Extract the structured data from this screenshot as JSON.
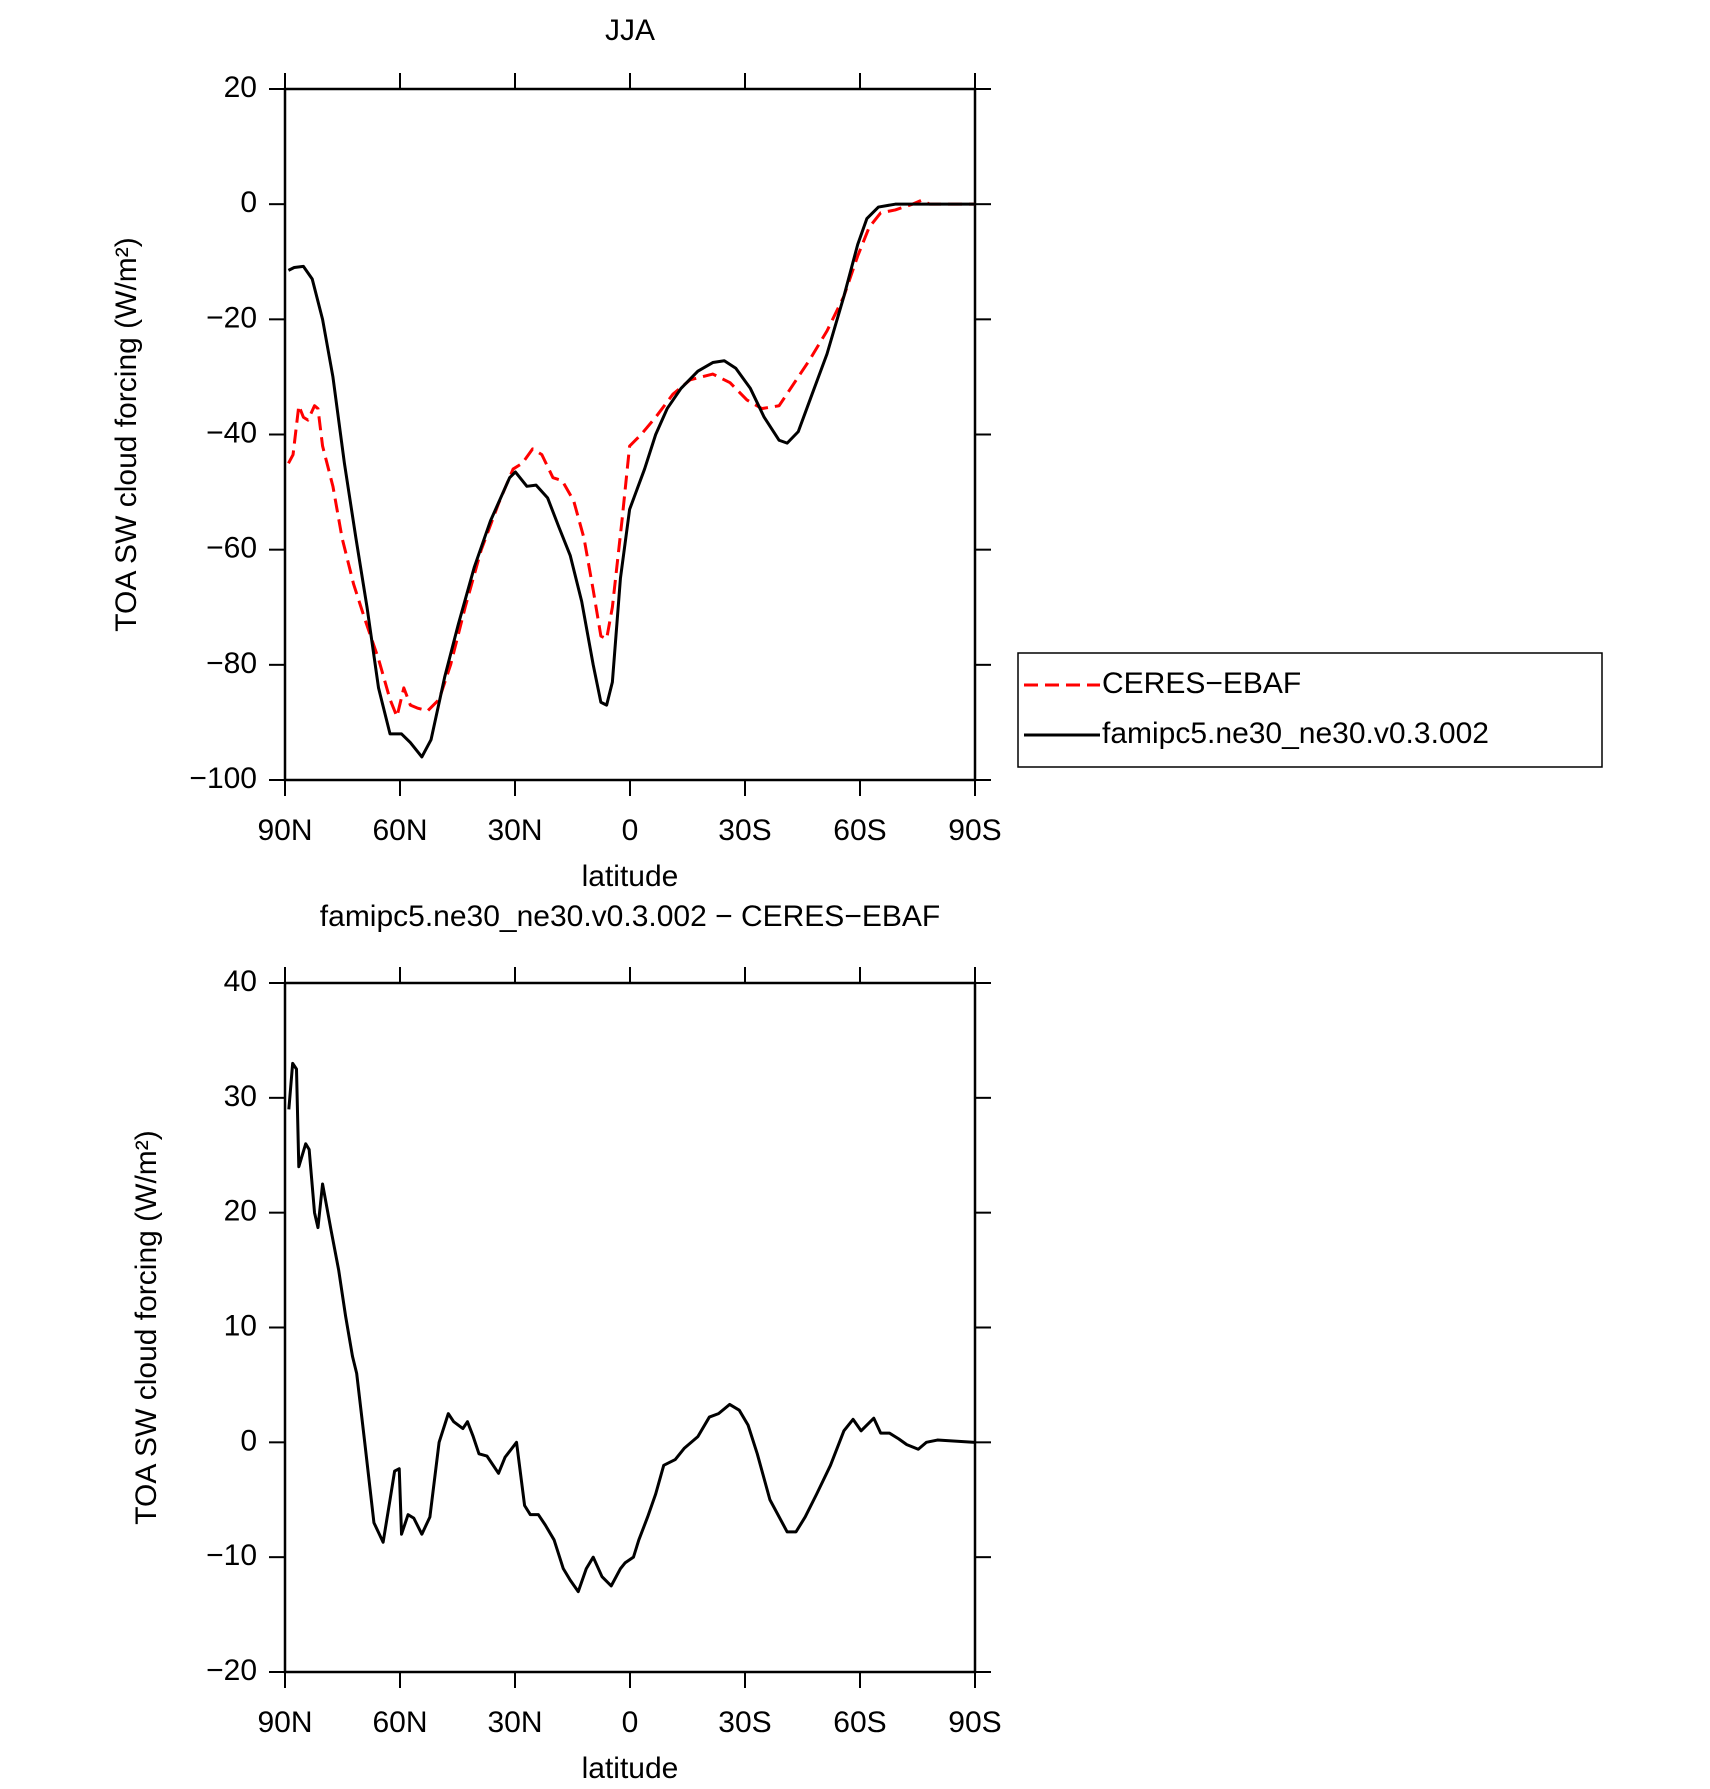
{
  "chart_data": [
    {
      "type": "line",
      "title": "JJA",
      "xlabel": "latitude",
      "ylabel": "TOA SW cloud forcing (W/m²)",
      "xlim": [
        90,
        -90
      ],
      "xticks": [
        {
          "value": 90,
          "label": "90N"
        },
        {
          "value": 60,
          "label": "60N"
        },
        {
          "value": 30,
          "label": "30N"
        },
        0,
        {
          "value": -30,
          "label": "30S"
        },
        {
          "value": -60,
          "label": "60S"
        },
        {
          "value": -90,
          "label": "90S"
        }
      ],
      "ylim": [
        -100,
        20
      ],
      "yticks": [
        20,
        0,
        {
          "value": -20,
          "label": "−20"
        },
        {
          "value": -40,
          "label": "−40"
        },
        {
          "value": -60,
          "label": "−60"
        },
        {
          "value": -80,
          "label": "−80"
        },
        {
          "value": -100,
          "label": "−100"
        }
      ],
      "legend": "right",
      "series": [
        {
          "name": "CERES−EBAF",
          "color": "#ff0000",
          "dash": true,
          "x": [
            89.1,
            87.9,
            86.4,
            85.2,
            84,
            82.3,
            81.4,
            80.2,
            77.5,
            75.1,
            72.1,
            69.2,
            65.6,
            62.6,
            60.8,
            59,
            57.3,
            55.5,
            52.8,
            49.8,
            46.8,
            43,
            38.8,
            34.3,
            30.5,
            28.1,
            25.4,
            23,
            20.1,
            17.7,
            14.7,
            12,
            9.6,
            7.6,
            6.1,
            4.6,
            2.1,
            0.1,
            -2.9,
            -6.7,
            -11.2,
            -15.7,
            -21.6,
            -26.1,
            -30.5,
            -34.4,
            -38.9,
            -42.4,
            -46.9,
            -51.4,
            -55.8,
            -59.4,
            -62.4,
            -65.4,
            -69.2,
            -73.7,
            -76.1,
            -78.2,
            -90
          ],
          "values": [
            -45,
            -43.5,
            -35,
            -37,
            -37.5,
            -35,
            -35.5,
            -42,
            -49,
            -58,
            -66,
            -72,
            -79,
            -86,
            -89,
            -84,
            -87,
            -87.5,
            -88,
            -86,
            -80,
            -70,
            -60,
            -52,
            -46,
            -45,
            -42.5,
            -43.5,
            -47.5,
            -48,
            -51.5,
            -58,
            -67,
            -75,
            -75.5,
            -70,
            -55,
            -42,
            -40,
            -37,
            -33,
            -30.5,
            -29.5,
            -31,
            -34,
            -35.5,
            -35,
            -31.5,
            -27,
            -22,
            -16,
            -9,
            -4,
            -1.5,
            -1,
            0,
            0.7,
            0,
            0
          ]
        },
        {
          "name": "famipc5.ne30_ne30.v0.3.002",
          "color": "#000000",
          "dash": false,
          "x": [
            89.1,
            87.6,
            85.2,
            82.9,
            80.2,
            77.5,
            74.5,
            71.5,
            68.6,
            65.6,
            62.6,
            59.6,
            57.3,
            54.3,
            51.9,
            48.3,
            44.8,
            40.6,
            36.4,
            31.4,
            29.9,
            26.9,
            24.5,
            21.5,
            18.6,
            15.6,
            12.6,
            9.6,
            7.6,
            6.1,
            4.6,
            2.5,
            0.1,
            -3.8,
            -6.7,
            -9.7,
            -13.3,
            -17.7,
            -21.6,
            -24.6,
            -27.6,
            -31.4,
            -35,
            -38.9,
            -41,
            -43.9,
            -47.5,
            -51.4,
            -55.8,
            -59.4,
            -61.8,
            -64.8,
            -69.2,
            -90
          ],
          "values": [
            -11.5,
            -11,
            -10.8,
            -13,
            -20,
            -30,
            -45,
            -58,
            -70,
            -84,
            -92,
            -92,
            -93.5,
            -96,
            -93,
            -82,
            -73,
            -63,
            -55,
            -47.5,
            -46.5,
            -49,
            -48.8,
            -51,
            -56,
            -61,
            -69,
            -80,
            -86.5,
            -87,
            -83,
            -65,
            -53,
            -46,
            -40,
            -35.5,
            -32,
            -29,
            -27.5,
            -27.2,
            -28.5,
            -32,
            -37,
            -41,
            -41.5,
            -39.5,
            -33,
            -26,
            -16,
            -7,
            -2.5,
            -0.5,
            0,
            0
          ]
        }
      ]
    },
    {
      "type": "line",
      "title": "famipc5.ne30_ne30.v0.3.002 − CERES−EBAF",
      "xlabel": "latitude",
      "ylabel": "TOA SW cloud forcing (W/m²)",
      "xlim": [
        90,
        -90
      ],
      "xticks": [
        {
          "value": 90,
          "label": "90N"
        },
        {
          "value": 60,
          "label": "60N"
        },
        {
          "value": 30,
          "label": "30N"
        },
        0,
        {
          "value": -30,
          "label": "30S"
        },
        {
          "value": -60,
          "label": "60S"
        },
        {
          "value": -90,
          "label": "90S"
        }
      ],
      "ylim": [
        -20,
        40
      ],
      "yticks": [
        40,
        30,
        20,
        10,
        0,
        {
          "value": -10,
          "label": "−10"
        },
        {
          "value": -20,
          "label": "−20"
        }
      ],
      "series": [
        {
          "color": "#000000",
          "dash": false,
          "x": [
            89,
            88,
            87,
            86.4,
            84.6,
            83.7,
            82.3,
            81.4,
            80.2,
            78,
            76,
            74.2,
            72.4,
            71.3,
            69.2,
            66.8,
            64.4,
            62.6,
            61.4,
            60.2,
            59.6,
            57.9,
            56.4,
            54.3,
            52.2,
            49.8,
            47.4,
            46,
            43.6,
            42.4,
            40.9,
            39.4,
            37.3,
            34.3,
            32.6,
            29.6,
            27.5,
            26,
            23.9,
            22.1,
            19.8,
            17.4,
            15.6,
            13.5,
            11.4,
            9.6,
            7.3,
            4.9,
            2.5,
            1.3,
            -0.9,
            -2.3,
            -4.6,
            -6.7,
            -8.8,
            -11.8,
            -14.2,
            -17.7,
            -20.7,
            -23.1,
            -26,
            -28.5,
            -30.8,
            -33.2,
            -36.5,
            -41,
            -43.3,
            -45.7,
            -48.7,
            -52.3,
            -55.8,
            -58.2,
            -60.3,
            -61.8,
            -63.6,
            -65.4,
            -67.7,
            -70.1,
            -72.2,
            -75.2,
            -77.3,
            -80.2,
            -90
          ],
          "values": [
            29,
            33,
            32.5,
            24,
            26,
            25.5,
            20,
            18.7,
            22.5,
            18.5,
            15,
            11,
            7.5,
            6,
            0,
            -7,
            -8.7,
            -5,
            -2.5,
            -2.3,
            -8,
            -6.3,
            -6.6,
            -8,
            -6.5,
            0,
            2.5,
            1.8,
            1.2,
            1.8,
            0.5,
            -1,
            -1.2,
            -2.7,
            -1.3,
            0,
            -5.5,
            -6.3,
            -6.3,
            -7.2,
            -8.5,
            -11,
            -12,
            -13,
            -11,
            -10,
            -11.7,
            -12.5,
            -11,
            -10.5,
            -10,
            -8.5,
            -6.5,
            -4.5,
            -2,
            -1.5,
            -0.5,
            0.5,
            2.2,
            2.5,
            3.3,
            2.8,
            1.5,
            -1,
            -5,
            -7.8,
            -7.8,
            -6.5,
            -4.5,
            -2,
            1,
            2,
            1,
            1.5,
            2.1,
            0.8,
            0.8,
            0.3,
            -0.2,
            -0.6,
            0,
            0.2,
            0
          ]
        }
      ]
    }
  ]
}
